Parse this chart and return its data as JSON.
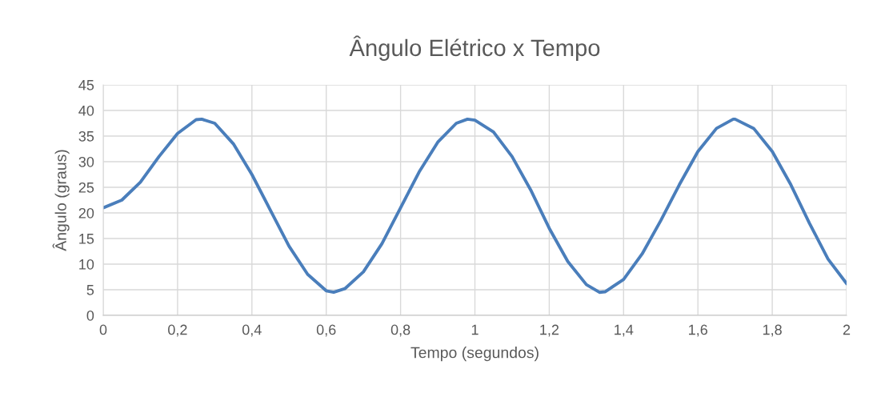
{
  "chart_data": {
    "type": "line",
    "title": "Ângulo Elétrico x Tempo",
    "xlabel": "Tempo (segundos)",
    "ylabel": "Ângulo (graus)",
    "x": [
      0,
      0.05,
      0.1,
      0.15,
      0.2,
      0.25,
      0.265,
      0.3,
      0.35,
      0.4,
      0.45,
      0.5,
      0.55,
      0.6,
      0.62,
      0.65,
      0.7,
      0.75,
      0.8,
      0.85,
      0.9,
      0.95,
      0.98,
      1.0,
      1.05,
      1.1,
      1.15,
      1.2,
      1.25,
      1.3,
      1.335,
      1.35,
      1.4,
      1.45,
      1.5,
      1.55,
      1.6,
      1.65,
      1.695,
      1.7,
      1.75,
      1.8,
      1.85,
      1.9,
      1.95,
      2.0
    ],
    "series": [
      {
        "color": "#4a7ebb",
        "values": [
          21,
          22.5,
          26,
          31,
          35.5,
          38.2,
          38.3,
          37.5,
          33.5,
          27.5,
          20.5,
          13.5,
          8,
          4.8,
          4.5,
          5.2,
          8.5,
          14,
          21,
          28,
          33.8,
          37.5,
          38.3,
          38.1,
          35.8,
          31,
          24.5,
          17,
          10.5,
          6,
          4.5,
          4.6,
          7,
          12,
          18.5,
          25.5,
          32,
          36.5,
          38.3,
          38.3,
          36.5,
          32,
          25.5,
          18,
          11,
          6.2
        ]
      }
    ],
    "xlim": [
      0,
      2
    ],
    "xticks": [
      0,
      {
        "value": 0.2,
        "label": "0,2"
      },
      {
        "value": 0.4,
        "label": "0,4"
      },
      {
        "value": 0.6,
        "label": "0,6"
      },
      {
        "value": 0.8,
        "label": "0,8"
      },
      1,
      {
        "value": 1.2,
        "label": "1,2"
      },
      {
        "value": 1.4,
        "label": "1,4"
      },
      {
        "value": 1.6,
        "label": "1,6"
      },
      {
        "value": 1.8,
        "label": "1,8"
      },
      2
    ],
    "ylim": [
      0,
      45
    ],
    "yticks": [
      0,
      5,
      10,
      15,
      20,
      25,
      30,
      35,
      40,
      45
    ],
    "grid": true,
    "legend": false,
    "marker": "none",
    "line_style": "solid"
  }
}
